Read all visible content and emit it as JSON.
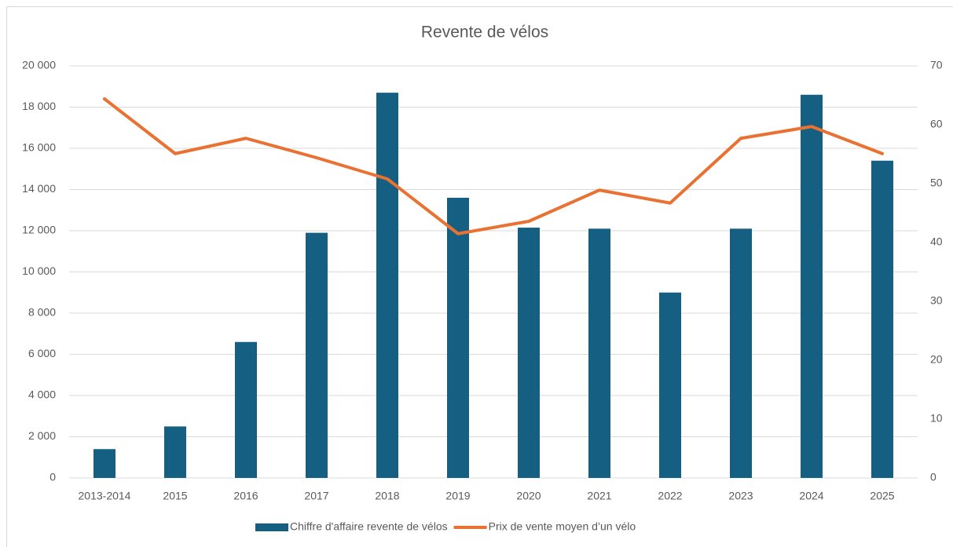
{
  "chart_data": {
    "type": "bar_line_combo",
    "title": "Revente de vélos",
    "categories": [
      "2013-2014",
      "2015",
      "2016",
      "2017",
      "2018",
      "2019",
      "2020",
      "2021",
      "2022",
      "2023",
      "2024",
      "2025"
    ],
    "series": [
      {
        "name": "Chiffre d'affaire revente de vélos",
        "type": "bar",
        "color": "#156082",
        "values": [
          1400,
          2500,
          6600,
          11900,
          18700,
          13600,
          12150,
          12100,
          9000,
          12100,
          18600,
          15400
        ]
      },
      {
        "name": "Prix de vente moyen d’un vélo",
        "type": "line",
        "axis": "y2",
        "color": "#E97132",
        "values": [
          64.4,
          55.1,
          57.7,
          54.4,
          50.8,
          41.5,
          43.6,
          48.9,
          46.7,
          57.7,
          59.7,
          55.1
        ]
      }
    ],
    "ylim": [
      0,
      20000
    ],
    "yticks": [
      0,
      {
        "value": 2000,
        "label": "2 000"
      },
      {
        "value": 4000,
        "label": "4 000"
      },
      {
        "value": 6000,
        "label": "6 000"
      },
      {
        "value": 8000,
        "label": "8 000"
      },
      {
        "value": 10000,
        "label": "10 000"
      },
      {
        "value": 12000,
        "label": "12 000"
      },
      {
        "value": 14000,
        "label": "14 000"
      },
      {
        "value": 16000,
        "label": "16 000"
      },
      {
        "value": 18000,
        "label": "18 000"
      },
      {
        "value": 20000,
        "label": "20 000"
      }
    ],
    "y2lim": [
      0,
      70
    ],
    "y2ticks": [
      0,
      10,
      20,
      30,
      40,
      50,
      60,
      70
    ],
    "grid": true,
    "legend": "bottom"
  }
}
